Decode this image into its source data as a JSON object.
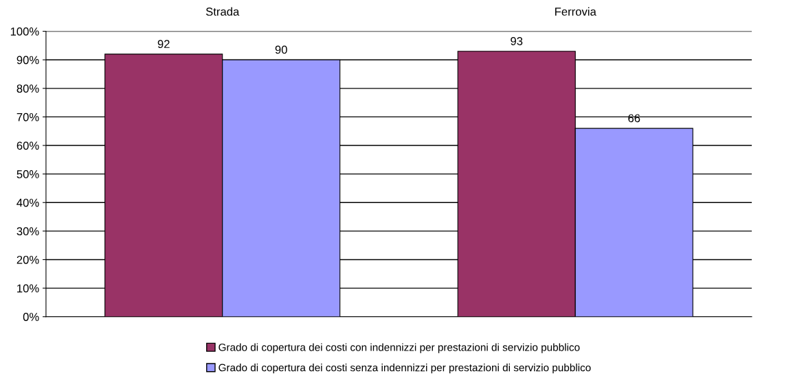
{
  "chart_data": {
    "type": "bar",
    "categories": [
      "Strada",
      "Ferrovia"
    ],
    "series": [
      {
        "name": "Grado di copertura dei costi con indennizzi per prestazioni di servizio pubblico",
        "color": "#993366",
        "values": [
          92,
          93
        ]
      },
      {
        "name": "Grado di copertura dei costi senza indennizzi per prestazioni di servizio pubblico",
        "color": "#9999ff",
        "values": [
          90,
          66
        ]
      }
    ],
    "ylim": [
      0,
      100
    ],
    "yticks": [
      {
        "value": 0,
        "label": "0%"
      },
      {
        "value": 10,
        "label": "10%"
      },
      {
        "value": 20,
        "label": "20%"
      },
      {
        "value": 30,
        "label": "30%"
      },
      {
        "value": 40,
        "label": "40%"
      },
      {
        "value": 50,
        "label": "50%"
      },
      {
        "value": 60,
        "label": "60%"
      },
      {
        "value": 70,
        "label": "70%"
      },
      {
        "value": 80,
        "label": "80%"
      },
      {
        "value": 90,
        "label": "90%"
      },
      {
        "value": 100,
        "label": "100%"
      }
    ],
    "grid": "y",
    "legend": "bottom",
    "data_labels": true
  }
}
